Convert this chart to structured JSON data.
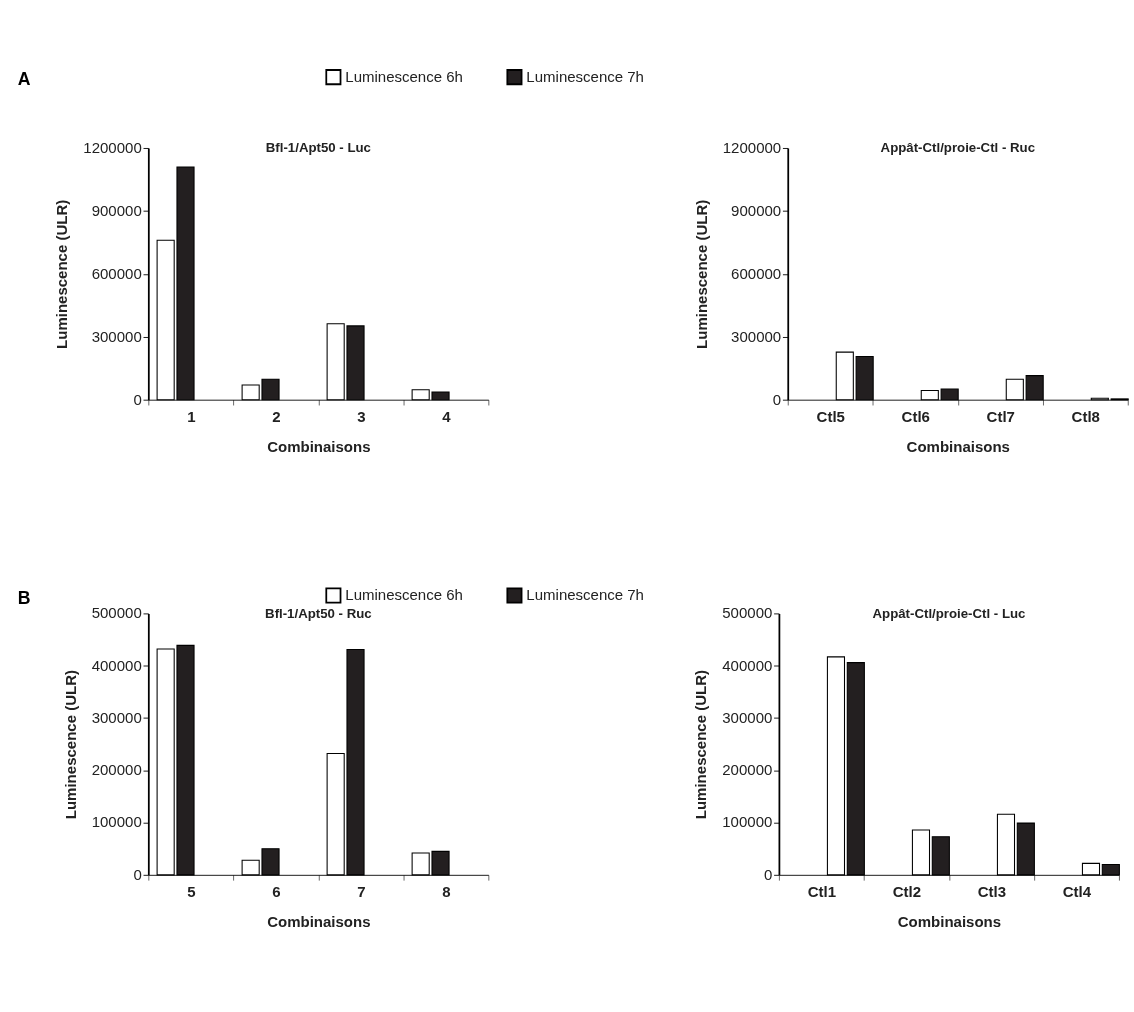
{
  "chart_data": [
    {
      "type": "bar",
      "title": "Bfl-1/Apt50 - Luc",
      "xlabel": "Combinaisons",
      "ylabel": "Luminescence (ULR)",
      "categories": [
        "1",
        "2",
        "3",
        "4"
      ],
      "series": [
        {
          "name": "Luminescence 6h",
          "color": "#ffffff",
          "values": [
            760000,
            70000,
            362000,
            48000
          ]
        },
        {
          "name": "Luminescence 7h",
          "color": "#231f20",
          "values": [
            1110000,
            98000,
            352000,
            37000
          ]
        }
      ],
      "ylim": [
        0,
        1200000
      ],
      "yticks": [
        0,
        300000,
        600000,
        900000,
        1200000
      ],
      "grid": false,
      "legend": "top",
      "annotations": [
        "A"
      ]
    },
    {
      "type": "bar",
      "title": "Appât-Ctl/proie-Ctl - Ruc",
      "xlabel": "Combinaisons",
      "ylabel": "Luminescence (ULR)",
      "categories": [
        "Ctl5",
        "Ctl6",
        "Ctl7",
        "Ctl8"
      ],
      "series": [
        {
          "color": "#ffffff",
          "values": [
            227000,
            44000,
            98000,
            7000
          ]
        },
        {
          "color": "#231f20",
          "values": [
            206000,
            51000,
            115000,
            4000
          ]
        }
      ],
      "ylim": [
        0,
        1200000
      ],
      "yticks": [
        0,
        300000,
        600000,
        900000,
        1200000
      ],
      "grid": false
    },
    {
      "type": "bar",
      "title": "Bfl-1/Apt50 - Ruc",
      "xlabel": "Combinaisons",
      "ylabel": "Luminescence (ULR)",
      "categories": [
        "5",
        "6",
        "7",
        "8"
      ],
      "series": [
        {
          "name": "Luminescence 6h",
          "color": "#ffffff",
          "values": [
            432000,
            28000,
            232000,
            42000
          ]
        },
        {
          "name": "Luminescence 7h",
          "color": "#231f20",
          "values": [
            439000,
            50000,
            431000,
            45000
          ]
        }
      ],
      "ylim": [
        0,
        500000
      ],
      "yticks": [
        0,
        100000,
        200000,
        300000,
        400000,
        500000
      ],
      "grid": false,
      "legend": "top",
      "annotations": [
        "B"
      ]
    },
    {
      "type": "bar",
      "title": "Appât-Ctl/proie-Ctl - Luc",
      "xlabel": "Combinaisons",
      "ylabel": "Luminescence (ULR)",
      "categories": [
        "Ctl1",
        "Ctl2",
        "Ctl3",
        "Ctl4"
      ],
      "series": [
        {
          "color": "#ffffff",
          "values": [
            417000,
            86000,
            116000,
            22000
          ]
        },
        {
          "color": "#231f20",
          "values": [
            406000,
            73000,
            99000,
            20000
          ]
        }
      ],
      "ylim": [
        0,
        500000
      ],
      "yticks": [
        0,
        100000,
        200000,
        300000,
        400000,
        500000
      ],
      "grid": false
    }
  ]
}
